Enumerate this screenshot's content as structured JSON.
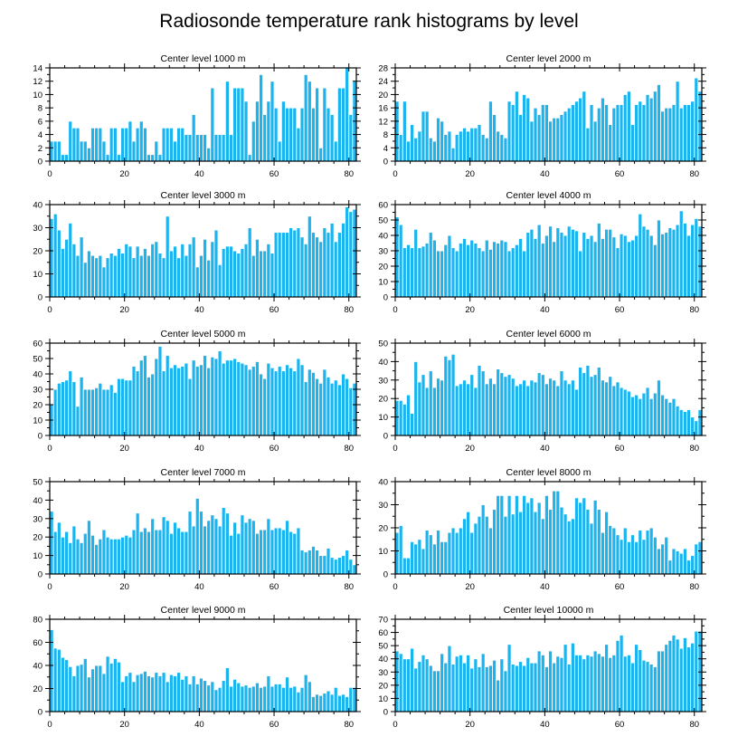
{
  "title": "Radiosonde temperature rank histograms by level",
  "colors": {
    "bar": "#1ab4ef",
    "axis": "#000000",
    "background": "#ffffff"
  },
  "chart_data": [
    {
      "type": "bar",
      "title": "Center level 1000 m",
      "xlim": [
        0,
        82
      ],
      "xticks": [
        0,
        20,
        40,
        60,
        80
      ],
      "ylim": [
        0,
        14
      ],
      "yticks": [
        0,
        2,
        4,
        6,
        8,
        10,
        12,
        14
      ],
      "values": [
        3,
        3,
        3,
        1,
        1,
        6,
        5,
        5,
        3,
        3,
        2,
        5,
        5,
        5,
        3,
        1,
        5,
        5,
        1,
        5,
        5,
        6,
        3,
        5,
        6,
        5,
        1,
        1,
        3,
        1,
        5,
        5,
        5,
        3,
        5,
        5,
        4,
        4,
        7,
        4,
        4,
        4,
        2,
        11,
        4,
        4,
        4,
        12,
        4,
        11,
        11,
        11,
        9,
        1,
        6,
        9,
        13,
        7,
        9,
        12,
        8,
        3,
        9,
        8,
        8,
        8,
        5,
        8,
        13,
        12,
        8,
        11,
        2,
        11,
        8,
        7,
        3,
        11,
        11,
        14,
        7,
        12
      ],
      "xlabel": "",
      "ylabel": ""
    },
    {
      "type": "bar",
      "title": "Center level 2000 m",
      "xlim": [
        0,
        82
      ],
      "xticks": [
        0,
        20,
        40,
        60,
        80
      ],
      "ylim": [
        0,
        28
      ],
      "yticks": [
        0,
        4,
        8,
        12,
        16,
        20,
        24,
        28
      ],
      "values": [
        18,
        8,
        18,
        6,
        11,
        7,
        9,
        15,
        15,
        7,
        6,
        13,
        12,
        8,
        9,
        4,
        8,
        9,
        10,
        9,
        10,
        10,
        11,
        8,
        7,
        18,
        14,
        9,
        8,
        7,
        18,
        17,
        21,
        14,
        20,
        19,
        12,
        16,
        14,
        17,
        17,
        12,
        13,
        13,
        14,
        15,
        16,
        17,
        18,
        19,
        21,
        10,
        17,
        12,
        16,
        19,
        17,
        11,
        16,
        17,
        17,
        20,
        21,
        11,
        17,
        18,
        17,
        20,
        19,
        21,
        23,
        15,
        16,
        16,
        17,
        24,
        16,
        17,
        17,
        18,
        25,
        21
      ],
      "xlabel": "",
      "ylabel": ""
    },
    {
      "type": "bar",
      "title": "Center level 3000 m",
      "xlim": [
        0,
        82
      ],
      "xticks": [
        0,
        20,
        40,
        60,
        80
      ],
      "ylim": [
        0,
        40
      ],
      "yticks": [
        0,
        10,
        20,
        30,
        40
      ],
      "values": [
        34,
        36,
        29,
        21,
        25,
        32,
        23,
        18,
        26,
        15,
        20,
        18,
        17,
        18,
        13,
        17,
        19,
        18,
        21,
        19,
        23,
        22,
        17,
        22,
        18,
        21,
        18,
        23,
        24,
        19,
        17,
        35,
        20,
        22,
        17,
        23,
        18,
        23,
        26,
        13,
        18,
        25,
        16,
        24,
        29,
        14,
        21,
        22,
        22,
        20,
        19,
        21,
        23,
        30,
        18,
        25,
        20,
        20,
        23,
        19,
        28,
        28,
        28,
        28,
        30,
        29,
        30,
        26,
        23,
        35,
        28,
        26,
        24,
        30,
        28,
        32,
        24,
        28,
        32,
        39,
        37,
        38
      ],
      "xlabel": "",
      "ylabel": ""
    },
    {
      "type": "bar",
      "title": "Center level 4000 m",
      "xlim": [
        0,
        82
      ],
      "xticks": [
        0,
        20,
        40,
        60,
        80
      ],
      "ylim": [
        0,
        60
      ],
      "yticks": [
        0,
        10,
        20,
        30,
        40,
        50,
        60
      ],
      "values": [
        52,
        47,
        32,
        34,
        32,
        44,
        32,
        33,
        35,
        42,
        37,
        30,
        30,
        34,
        40,
        32,
        30,
        35,
        38,
        34,
        37,
        35,
        32,
        30,
        37,
        31,
        36,
        35,
        37,
        36,
        30,
        32,
        34,
        38,
        30,
        42,
        44,
        38,
        47,
        35,
        40,
        46,
        36,
        45,
        42,
        40,
        46,
        44,
        43,
        30,
        42,
        38,
        40,
        36,
        48,
        38,
        44,
        44,
        39,
        32,
        41,
        40,
        36,
        37,
        40,
        54,
        46,
        44,
        40,
        34,
        50,
        41,
        42,
        45,
        44,
        47,
        56,
        48,
        40,
        47,
        51,
        46
      ],
      "xlabel": "",
      "ylabel": ""
    },
    {
      "type": "bar",
      "title": "Center level 5000 m",
      "xlim": [
        0,
        82
      ],
      "xticks": [
        0,
        20,
        40,
        60,
        80
      ],
      "ylim": [
        0,
        60
      ],
      "yticks": [
        0,
        10,
        20,
        30,
        40,
        50,
        60
      ],
      "values": [
        20,
        30,
        34,
        35,
        36,
        42,
        35,
        19,
        38,
        30,
        30,
        30,
        31,
        34,
        30,
        30,
        33,
        28,
        37,
        37,
        36,
        36,
        45,
        42,
        49,
        52,
        38,
        40,
        50,
        58,
        42,
        52,
        44,
        46,
        44,
        45,
        47,
        37,
        49,
        45,
        46,
        52,
        44,
        51,
        50,
        55,
        47,
        49,
        49,
        50,
        48,
        47,
        46,
        43,
        45,
        48,
        40,
        37,
        47,
        44,
        42,
        45,
        42,
        46,
        44,
        42,
        50,
        46,
        35,
        43,
        41,
        37,
        34,
        43,
        38,
        34,
        36,
        33,
        40,
        37,
        31,
        34
      ],
      "xlabel": "",
      "ylabel": ""
    },
    {
      "type": "bar",
      "title": "Center level 6000 m",
      "xlim": [
        0,
        82
      ],
      "xticks": [
        0,
        20,
        40,
        60,
        80
      ],
      "ylim": [
        0,
        50
      ],
      "yticks": [
        0,
        10,
        20,
        30,
        40,
        50
      ],
      "values": [
        19,
        19,
        17,
        22,
        12,
        40,
        29,
        33,
        26,
        35,
        26,
        31,
        30,
        43,
        41,
        44,
        27,
        28,
        30,
        28,
        33,
        26,
        38,
        35,
        28,
        31,
        28,
        36,
        34,
        32,
        33,
        31,
        27,
        28,
        30,
        27,
        30,
        29,
        34,
        33,
        28,
        31,
        30,
        27,
        35,
        30,
        28,
        30,
        25,
        37,
        34,
        38,
        32,
        33,
        37,
        30,
        29,
        32,
        27,
        29,
        26,
        25,
        24,
        21,
        22,
        20,
        23,
        26,
        20,
        23,
        30,
        22,
        20,
        18,
        20,
        16,
        14,
        13,
        14,
        10,
        8,
        14
      ],
      "xlabel": "",
      "ylabel": ""
    },
    {
      "type": "bar",
      "title": "Center level 7000 m",
      "xlim": [
        0,
        82
      ],
      "xticks": [
        0,
        20,
        40,
        60,
        80
      ],
      "ylim": [
        0,
        50
      ],
      "yticks": [
        0,
        10,
        20,
        30,
        40,
        50
      ],
      "values": [
        34,
        23,
        28,
        20,
        23,
        17,
        26,
        19,
        17,
        22,
        29,
        21,
        16,
        19,
        24,
        20,
        19,
        19,
        19,
        20,
        21,
        20,
        24,
        33,
        23,
        25,
        23,
        30,
        24,
        24,
        31,
        29,
        22,
        28,
        25,
        23,
        23,
        34,
        26,
        41,
        34,
        26,
        29,
        32,
        30,
        26,
        36,
        33,
        21,
        28,
        22,
        32,
        28,
        30,
        29,
        22,
        24,
        24,
        30,
        24,
        25,
        25,
        24,
        29,
        23,
        22,
        25,
        13,
        12,
        13,
        15,
        13,
        10,
        10,
        14,
        9,
        8,
        9,
        10,
        13,
        8,
        5
      ],
      "xlabel": "",
      "ylabel": ""
    },
    {
      "type": "bar",
      "title": "Center level 8000 m",
      "xlim": [
        0,
        82
      ],
      "xticks": [
        0,
        20,
        40,
        60,
        80
      ],
      "ylim": [
        0,
        40
      ],
      "yticks": [
        0,
        10,
        20,
        30,
        40
      ],
      "values": [
        18,
        21,
        7,
        7,
        14,
        13,
        15,
        11,
        19,
        17,
        13,
        19,
        14,
        14,
        18,
        20,
        18,
        20,
        24,
        27,
        18,
        22,
        25,
        30,
        25,
        20,
        28,
        34,
        34,
        25,
        34,
        26,
        34,
        27,
        34,
        31,
        33,
        27,
        31,
        24,
        34,
        28,
        36,
        36,
        29,
        26,
        23,
        24,
        33,
        31,
        33,
        28,
        22,
        32,
        28,
        18,
        27,
        21,
        20,
        17,
        15,
        20,
        14,
        17,
        14,
        19,
        15,
        19,
        20,
        16,
        11,
        13,
        16,
        6,
        11,
        10,
        9,
        11,
        6,
        8,
        13,
        14
      ],
      "xlabel": "",
      "ylabel": ""
    },
    {
      "type": "bar",
      "title": "Center level 9000 m",
      "xlim": [
        0,
        82
      ],
      "xticks": [
        0,
        20,
        40,
        60,
        80
      ],
      "ylim": [
        0,
        80
      ],
      "yticks": [
        0,
        20,
        40,
        60,
        80
      ],
      "values": [
        71,
        55,
        54,
        47,
        45,
        39,
        31,
        40,
        41,
        46,
        30,
        37,
        40,
        40,
        33,
        48,
        42,
        46,
        43,
        26,
        31,
        34,
        26,
        32,
        33,
        35,
        31,
        30,
        34,
        31,
        34,
        26,
        32,
        31,
        34,
        28,
        31,
        24,
        31,
        24,
        29,
        27,
        23,
        26,
        19,
        21,
        27,
        38,
        22,
        28,
        25,
        22,
        23,
        21,
        22,
        25,
        21,
        22,
        31,
        22,
        24,
        24,
        21,
        30,
        21,
        22,
        17,
        21,
        32,
        26,
        13,
        15,
        14,
        16,
        18,
        15,
        21,
        14,
        15,
        13,
        21,
        21
      ],
      "xlabel": "",
      "ylabel": ""
    },
    {
      "type": "bar",
      "title": "Center level 10000 m",
      "xlim": [
        0,
        82
      ],
      "xticks": [
        0,
        20,
        40,
        60,
        80
      ],
      "ylim": [
        0,
        70
      ],
      "yticks": [
        0,
        10,
        20,
        30,
        40,
        50,
        60,
        70
      ],
      "values": [
        46,
        44,
        40,
        40,
        48,
        33,
        38,
        43,
        40,
        35,
        31,
        31,
        44,
        37,
        50,
        36,
        42,
        43,
        37,
        43,
        33,
        40,
        34,
        44,
        34,
        35,
        39,
        24,
        40,
        31,
        51,
        36,
        35,
        38,
        35,
        41,
        37,
        37,
        46,
        43,
        34,
        46,
        37,
        42,
        41,
        51,
        36,
        52,
        43,
        43,
        40,
        43,
        42,
        46,
        44,
        42,
        51,
        41,
        43,
        54,
        58,
        42,
        43,
        37,
        51,
        47,
        39,
        38,
        36,
        34,
        46,
        46,
        51,
        54,
        58,
        55,
        48,
        56,
        49,
        52,
        61,
        61
      ],
      "xlabel": "",
      "ylabel": ""
    }
  ]
}
